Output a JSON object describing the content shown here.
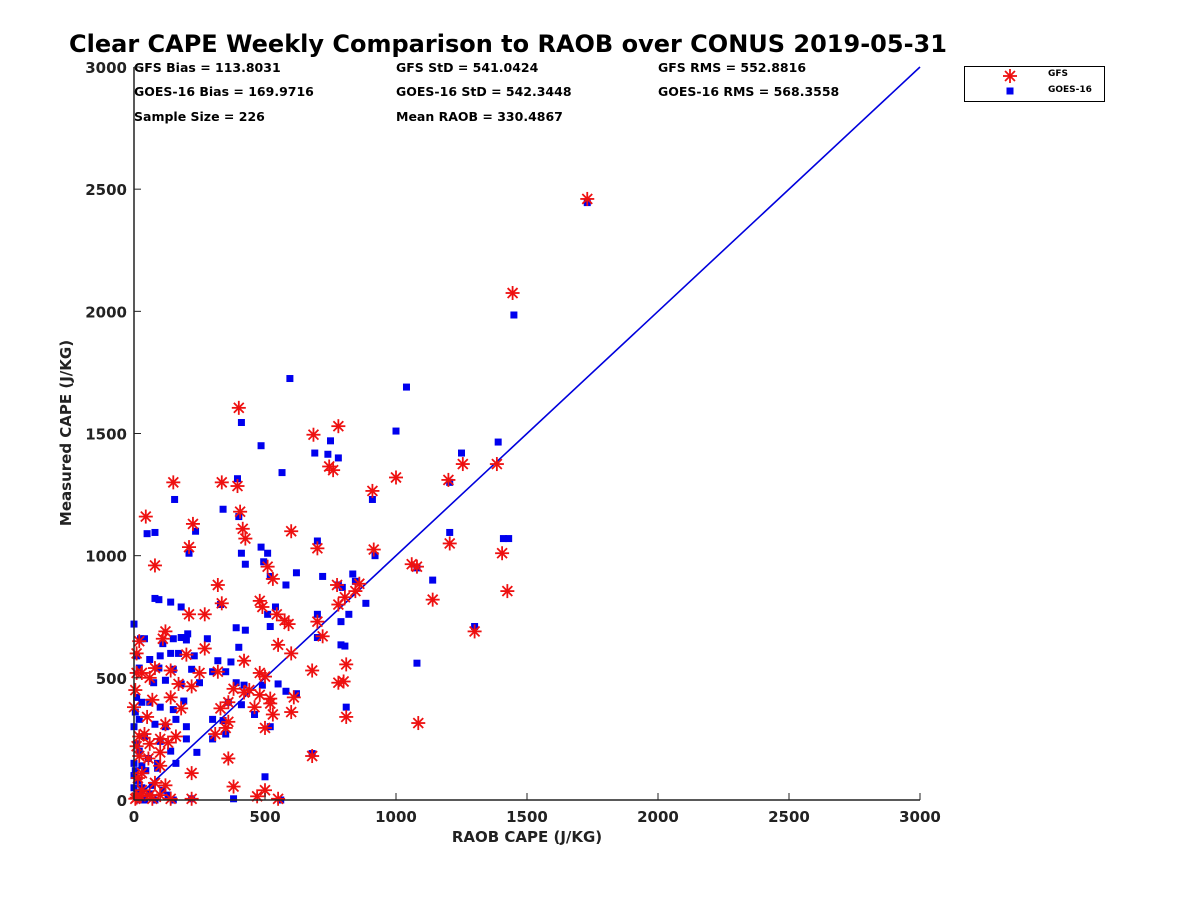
{
  "chart_data": {
    "type": "scatter",
    "title": "Clear CAPE Weekly Comparison to RAOB over CONUS 2019-05-31",
    "xlabel": "RAOB CAPE (J/KG)",
    "ylabel": "Measured CAPE (J/KG)",
    "xlim": [
      0,
      3000
    ],
    "ylim": [
      0,
      3000
    ],
    "xticks": [
      "0",
      "500",
      "1000",
      "1500",
      "2000",
      "2500",
      "3000"
    ],
    "yticks": [
      "0",
      "500",
      "1000",
      "1500",
      "2000",
      "2500",
      "3000"
    ],
    "legend_position": "top-right",
    "stats": {
      "gfs_bias": "GFS Bias = 113.8031",
      "gfs_std": "GFS StD = 541.0424",
      "gfs_rms": "GFS RMS = 552.8816",
      "goes_bias": "GOES-16 Bias = 169.9716",
      "goes_std": "GOES-16 StD = 542.3448",
      "goes_rms": "GOES-16 RMS = 568.3558",
      "sample_size": "Sample Size = 226",
      "mean_raob": "Mean RAOB = 330.4867"
    },
    "reference_line": {
      "name": "1:1 line",
      "color": "#0000dd",
      "x": [
        0,
        3000
      ],
      "y": [
        0,
        3000
      ]
    },
    "series": [
      {
        "name": "GFS",
        "marker": "asterisk",
        "color": "#ee1111",
        "points": [
          [
            1730,
            2460
          ],
          [
            1445,
            2075
          ],
          [
            400,
            1605
          ],
          [
            780,
            1530
          ],
          [
            685,
            1495
          ],
          [
            1385,
            1375
          ],
          [
            1255,
            1375
          ],
          [
            745,
            1365
          ],
          [
            760,
            1350
          ],
          [
            1000,
            1320
          ],
          [
            1200,
            1310
          ],
          [
            150,
            1300
          ],
          [
            335,
            1300
          ],
          [
            395,
            1285
          ],
          [
            910,
            1265
          ],
          [
            405,
            1180
          ],
          [
            45,
            1160
          ],
          [
            225,
            1130
          ],
          [
            415,
            1110
          ],
          [
            600,
            1100
          ],
          [
            425,
            1070
          ],
          [
            1205,
            1050
          ],
          [
            210,
            1035
          ],
          [
            700,
            1030
          ],
          [
            915,
            1025
          ],
          [
            1405,
            1010
          ],
          [
            1060,
            965
          ],
          [
            1080,
            955
          ],
          [
            80,
            960
          ],
          [
            510,
            955
          ],
          [
            530,
            905
          ],
          [
            860,
            885
          ],
          [
            775,
            880
          ],
          [
            320,
            880
          ],
          [
            1425,
            855
          ],
          [
            845,
            855
          ],
          [
            805,
            830
          ],
          [
            1140,
            820
          ],
          [
            780,
            800
          ],
          [
            480,
            815
          ],
          [
            335,
            805
          ],
          [
            490,
            790
          ],
          [
            270,
            760
          ],
          [
            210,
            760
          ],
          [
            545,
            760
          ],
          [
            575,
            735
          ],
          [
            700,
            730
          ],
          [
            590,
            720
          ],
          [
            1300,
            690
          ],
          [
            720,
            670
          ],
          [
            120,
            690
          ],
          [
            110,
            660
          ],
          [
            810,
            555
          ],
          [
            420,
            570
          ],
          [
            600,
            600
          ],
          [
            200,
            595
          ],
          [
            550,
            635
          ],
          [
            680,
            530
          ],
          [
            480,
            520
          ],
          [
            320,
            525
          ],
          [
            80,
            540
          ],
          [
            140,
            530
          ],
          [
            500,
            505
          ],
          [
            60,
            500
          ],
          [
            30,
            520
          ],
          [
            10,
            600
          ],
          [
            20,
            650
          ],
          [
            800,
            485
          ],
          [
            780,
            480
          ],
          [
            170,
            475
          ],
          [
            220,
            465
          ],
          [
            380,
            455
          ],
          [
            440,
            450
          ],
          [
            420,
            440
          ],
          [
            480,
            430
          ],
          [
            520,
            415
          ],
          [
            360,
            400
          ],
          [
            610,
            420
          ],
          [
            70,
            410
          ],
          [
            140,
            420
          ],
          [
            520,
            395
          ],
          [
            460,
            380
          ],
          [
            330,
            375
          ],
          [
            180,
            375
          ],
          [
            600,
            360
          ],
          [
            530,
            350
          ],
          [
            810,
            340
          ],
          [
            50,
            340
          ],
          [
            120,
            310
          ],
          [
            360,
            320
          ],
          [
            1085,
            315
          ],
          [
            500,
            295
          ],
          [
            350,
            295
          ],
          [
            310,
            270
          ],
          [
            160,
            260
          ],
          [
            100,
            250
          ],
          [
            40,
            270
          ],
          [
            20,
            260
          ],
          [
            130,
            235
          ],
          [
            60,
            230
          ],
          [
            10,
            220
          ],
          [
            100,
            195
          ],
          [
            680,
            180
          ],
          [
            360,
            170
          ],
          [
            20,
            180
          ],
          [
            55,
            170
          ],
          [
            100,
            140
          ],
          [
            30,
            110
          ],
          [
            220,
            110
          ],
          [
            15,
            90
          ],
          [
            80,
            70
          ],
          [
            120,
            60
          ],
          [
            380,
            55
          ],
          [
            500,
            40
          ],
          [
            30,
            40
          ],
          [
            470,
            15
          ],
          [
            60,
            20
          ],
          [
            140,
            5
          ],
          [
            220,
            5
          ],
          [
            550,
            5
          ],
          [
            10,
            10
          ],
          [
            5,
            5
          ],
          [
            25,
            15
          ],
          [
            70,
            5
          ],
          [
            100,
            20
          ],
          [
            0,
            380
          ],
          [
            5,
            450
          ],
          [
            10,
            520
          ],
          [
            250,
            520
          ],
          [
            270,
            620
          ]
        ]
      },
      {
        "name": "GOES-16",
        "marker": "square",
        "color": "#0000ee",
        "points": [
          [
            1730,
            2445
          ],
          [
            1450,
            1985
          ],
          [
            595,
            1725
          ],
          [
            1040,
            1690
          ],
          [
            410,
            1545
          ],
          [
            1000,
            1510
          ],
          [
            485,
            1450
          ],
          [
            1390,
            1465
          ],
          [
            1250,
            1420
          ],
          [
            750,
            1470
          ],
          [
            690,
            1420
          ],
          [
            740,
            1415
          ],
          [
            780,
            1400
          ],
          [
            565,
            1340
          ],
          [
            395,
            1315
          ],
          [
            1205,
            1300
          ],
          [
            155,
            1230
          ],
          [
            910,
            1230
          ],
          [
            340,
            1190
          ],
          [
            400,
            1160
          ],
          [
            1205,
            1095
          ],
          [
            80,
            1095
          ],
          [
            50,
            1090
          ],
          [
            235,
            1100
          ],
          [
            1410,
            1070
          ],
          [
            1430,
            1070
          ],
          [
            700,
            1060
          ],
          [
            485,
            1035
          ],
          [
            410,
            1010
          ],
          [
            210,
            1010
          ],
          [
            510,
            1010
          ],
          [
            920,
            1000
          ],
          [
            495,
            975
          ],
          [
            425,
            965
          ],
          [
            1080,
            950
          ],
          [
            620,
            930
          ],
          [
            835,
            925
          ],
          [
            520,
            915
          ],
          [
            720,
            915
          ],
          [
            1140,
            900
          ],
          [
            580,
            880
          ],
          [
            780,
            880
          ],
          [
            845,
            895
          ],
          [
            795,
            870
          ],
          [
            80,
            825
          ],
          [
            95,
            820
          ],
          [
            140,
            810
          ],
          [
            180,
            790
          ],
          [
            330,
            800
          ],
          [
            540,
            790
          ],
          [
            885,
            805
          ],
          [
            820,
            760
          ],
          [
            510,
            760
          ],
          [
            700,
            760
          ],
          [
            790,
            730
          ],
          [
            1300,
            710
          ],
          [
            390,
            705
          ],
          [
            520,
            710
          ],
          [
            425,
            695
          ],
          [
            40,
            660
          ],
          [
            25,
            660
          ],
          [
            150,
            660
          ],
          [
            200,
            655
          ],
          [
            205,
            680
          ],
          [
            180,
            665
          ],
          [
            280,
            660
          ],
          [
            400,
            625
          ],
          [
            110,
            640
          ],
          [
            790,
            635
          ],
          [
            805,
            630
          ],
          [
            700,
            665
          ],
          [
            1080,
            560
          ],
          [
            60,
            575
          ],
          [
            100,
            590
          ],
          [
            140,
            600
          ],
          [
            170,
            600
          ],
          [
            230,
            590
          ],
          [
            320,
            570
          ],
          [
            370,
            565
          ],
          [
            10,
            590
          ],
          [
            20,
            540
          ],
          [
            95,
            540
          ],
          [
            150,
            535
          ],
          [
            220,
            535
          ],
          [
            300,
            525
          ],
          [
            350,
            525
          ],
          [
            550,
            475
          ],
          [
            490,
            470
          ],
          [
            420,
            470
          ],
          [
            390,
            480
          ],
          [
            75,
            480
          ],
          [
            120,
            490
          ],
          [
            180,
            475
          ],
          [
            250,
            480
          ],
          [
            580,
            445
          ],
          [
            620,
            435
          ],
          [
            360,
            400
          ],
          [
            410,
            390
          ],
          [
            460,
            350
          ],
          [
            520,
            300
          ],
          [
            300,
            330
          ],
          [
            340,
            325
          ],
          [
            190,
            405
          ],
          [
            150,
            370
          ],
          [
            100,
            380
          ],
          [
            60,
            400
          ],
          [
            30,
            400
          ],
          [
            10,
            420
          ],
          [
            5,
            360
          ],
          [
            20,
            330
          ],
          [
            80,
            310
          ],
          [
            120,
            300
          ],
          [
            160,
            330
          ],
          [
            200,
            300
          ],
          [
            350,
            270
          ],
          [
            300,
            250
          ],
          [
            240,
            195
          ],
          [
            160,
            150
          ],
          [
            90,
            150
          ],
          [
            55,
            170
          ],
          [
            20,
            200
          ],
          [
            10,
            230
          ],
          [
            40,
            260
          ],
          [
            100,
            240
          ],
          [
            140,
            200
          ],
          [
            200,
            250
          ],
          [
            680,
            190
          ],
          [
            810,
            380
          ],
          [
            500,
            95
          ],
          [
            560,
            0
          ],
          [
            380,
            5
          ],
          [
            220,
            5
          ],
          [
            130,
            20
          ],
          [
            60,
            25
          ],
          [
            30,
            50
          ],
          [
            15,
            80
          ],
          [
            5,
            120
          ],
          [
            45,
            120
          ],
          [
            70,
            60
          ],
          [
            110,
            40
          ],
          [
            10,
            10
          ],
          [
            20,
            0
          ],
          [
            40,
            0
          ],
          [
            80,
            0
          ],
          [
            150,
            0
          ],
          [
            0,
            50
          ],
          [
            0,
            100
          ],
          [
            0,
            150
          ],
          [
            0,
            300
          ],
          [
            0,
            720
          ],
          [
            90,
            130
          ],
          [
            30,
            140
          ],
          [
            15,
            30
          ]
        ]
      }
    ]
  }
}
